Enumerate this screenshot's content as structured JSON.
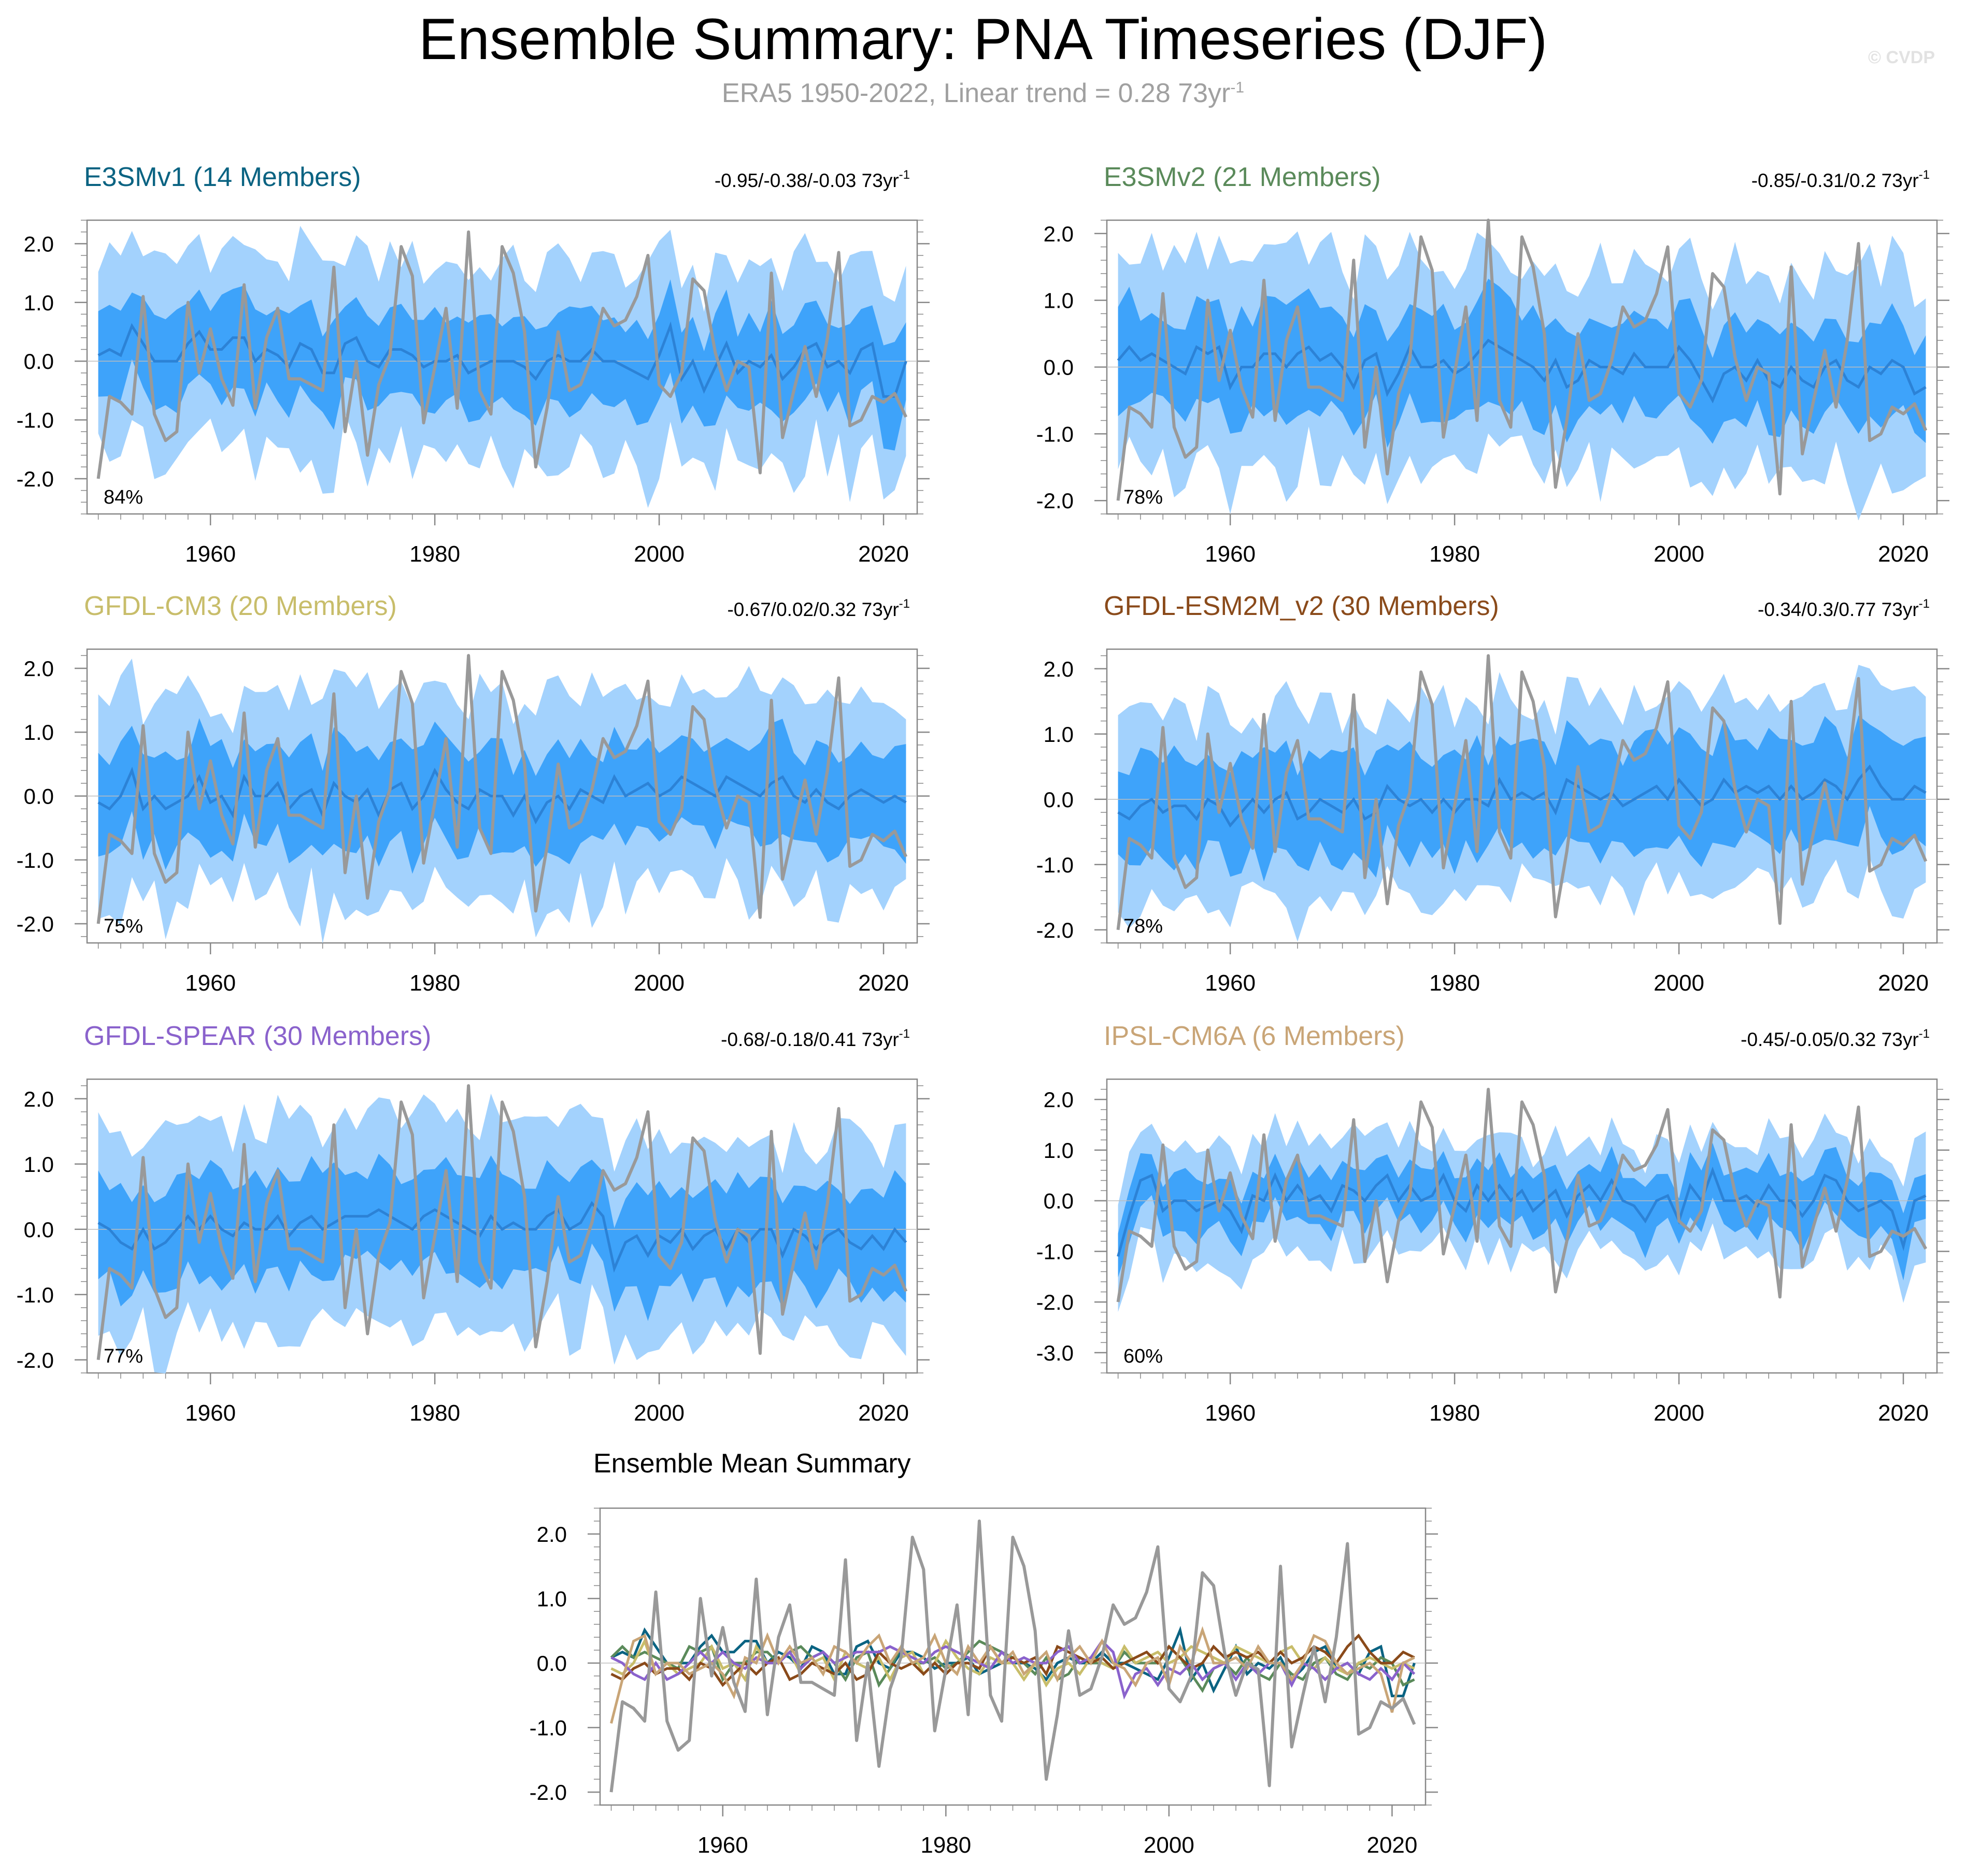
{
  "header": {
    "title": "Ensemble Summary: PNA Timeseries (DJF)",
    "subtitle": "ERA5 1950-2022, Linear trend = 0.28 73yr",
    "subtitle_exp": "-1",
    "watermark": "© CVDP"
  },
  "colors": {
    "outer_band": "#a3d2fd",
    "inner_band": "#3ea3fa",
    "ens_mean": "#2c82d6",
    "obs": "#999999",
    "axis": "#888888",
    "zero_line": "#bdbdbd"
  },
  "chart_data": {
    "type": "line",
    "x_start": 1950,
    "x_end": 2022,
    "xlim": [
      1949,
      2023
    ],
    "xticks": [
      1960,
      1980,
      2000,
      2020
    ],
    "observations": {
      "name": "ERA5",
      "x_start": 1950,
      "values": [
        -2.0,
        -0.6,
        -0.7,
        -0.9,
        1.1,
        -0.9,
        -1.35,
        -1.2,
        1.0,
        -0.2,
        0.55,
        -0.3,
        -0.75,
        1.3,
        -0.8,
        0.4,
        0.9,
        -0.3,
        -0.3,
        -0.4,
        -0.5,
        1.6,
        -1.2,
        0.0,
        -1.6,
        -0.4,
        0.1,
        1.95,
        1.45,
        -1.05,
        -0.1,
        0.9,
        -0.8,
        2.2,
        -0.5,
        -0.9,
        1.95,
        1.5,
        0.5,
        -1.8,
        -0.8,
        0.5,
        -0.5,
        -0.4,
        0.1,
        0.9,
        0.6,
        0.7,
        1.1,
        1.8,
        -0.4,
        -0.6,
        -0.2,
        1.4,
        1.2,
        0.15,
        -0.5,
        0.0,
        -0.1,
        -1.9,
        1.5,
        -1.3,
        -0.5,
        0.25,
        -0.6,
        0.4,
        1.85,
        -1.1,
        -1.0,
        -0.6,
        -0.7,
        -0.55,
        -0.95
      ]
    },
    "panels": [
      {
        "title": "E3SMv1 (14 Members)",
        "title_color": "#0a6382",
        "trend_text": "-0.95/-0.38/-0.03 73yr",
        "trend_exp": "-1",
        "pct": "84%",
        "ylim": [
          -2.6,
          2.4
        ],
        "yticks": [
          -2,
          -1,
          0,
          1,
          2
        ],
        "ytick_labels": [
          "-2.0",
          "-1.0",
          "0.0",
          "1.0",
          "2.0"
        ],
        "mean": [
          0.1,
          0.2,
          0.1,
          0.6,
          0.3,
          0.0,
          0.0,
          0.0,
          0.3,
          0.5,
          0.2,
          0.2,
          0.4,
          0.4,
          0.0,
          0.2,
          0.1,
          -0.1,
          0.3,
          0.2,
          -0.2,
          -0.2,
          0.3,
          0.4,
          0.0,
          -0.1,
          0.2,
          0.2,
          0.1,
          -0.1,
          0.0,
          0.0,
          0.1,
          -0.2,
          -0.1,
          0.0,
          0.0,
          0.0,
          -0.1,
          -0.3,
          0.0,
          0.1,
          0.0,
          0.0,
          0.2,
          0.0,
          0.0,
          -0.1,
          -0.2,
          -0.3,
          0.1,
          0.6,
          -0.3,
          0.0,
          -0.5,
          -0.1,
          0.3,
          -0.2,
          0.0,
          -0.1,
          0.1,
          -0.3,
          -0.1,
          0.2,
          0.3,
          -0.1,
          0.0,
          -0.2,
          0.2,
          0.3,
          -0.6,
          -0.6,
          0.0
        ],
        "hw_in": 0.75,
        "hw_out": 1.65
      },
      {
        "title": "E3SMv2 (21 Members)",
        "title_color": "#5a8a5a",
        "trend_text": "-0.85/-0.31/0.2 73yr",
        "trend_exp": "-1",
        "pct": "78%",
        "ylim": [
          -2.2,
          2.2
        ],
        "yticks": [
          -2,
          -1,
          0,
          1,
          2
        ],
        "ytick_labels": [
          "-2.0",
          "-1.0",
          "0.0",
          "1.0",
          "2.0"
        ],
        "mean": [
          0.1,
          0.3,
          0.1,
          0.2,
          0.1,
          0.0,
          -0.1,
          0.3,
          0.2,
          0.3,
          -0.3,
          0.0,
          0.0,
          0.2,
          0.2,
          0.0,
          0.2,
          0.3,
          0.1,
          0.2,
          0.0,
          -0.3,
          0.1,
          0.2,
          -0.4,
          -0.1,
          0.3,
          0.0,
          0.0,
          0.1,
          -0.1,
          0.0,
          0.2,
          0.4,
          0.3,
          0.2,
          0.1,
          0.0,
          -0.2,
          0.1,
          -0.3,
          -0.2,
          0.1,
          0.0,
          0.0,
          -0.1,
          0.2,
          0.0,
          0.0,
          0.0,
          0.3,
          0.1,
          -0.2,
          -0.5,
          -0.1,
          0.0,
          -0.2,
          0.1,
          -0.2,
          -0.3,
          0.0,
          -0.2,
          -0.3,
          0.0,
          0.1,
          -0.2,
          -0.3,
          0.0,
          -0.1,
          0.1,
          0.0,
          -0.4,
          -0.3
        ],
        "hw_in": 0.75,
        "hw_out": 1.55
      },
      {
        "title": "GFDL-CM3 (20 Members)",
        "title_color": "#c8bd6a",
        "trend_text": "-0.67/0.02/0.32 73yr",
        "trend_exp": "-1",
        "pct": "75%",
        "ylim": [
          -2.3,
          2.3
        ],
        "yticks": [
          -2,
          -1,
          0,
          1,
          2
        ],
        "ytick_labels": [
          "-2.0",
          "-1.0",
          "0.0",
          "1.0",
          "2.0"
        ],
        "mean": [
          -0.1,
          -0.2,
          0.0,
          0.4,
          -0.2,
          0.0,
          -0.2,
          -0.1,
          0.0,
          0.3,
          -0.1,
          0.0,
          -0.3,
          0.3,
          0.0,
          0.0,
          0.2,
          -0.2,
          0.0,
          0.1,
          -0.3,
          0.2,
          0.0,
          -0.1,
          0.1,
          -0.3,
          0.1,
          0.2,
          -0.2,
          0.0,
          0.4,
          0.1,
          -0.1,
          -0.2,
          0.1,
          0.0,
          0.0,
          -0.3,
          0.0,
          -0.4,
          -0.1,
          0.0,
          -0.2,
          0.1,
          0.0,
          -0.1,
          0.3,
          0.0,
          0.1,
          0.2,
          0.0,
          0.1,
          0.3,
          0.2,
          0.1,
          0.0,
          0.3,
          0.2,
          0.1,
          0.0,
          0.2,
          0.3,
          0.0,
          -0.1,
          0.1,
          -0.1,
          -0.2,
          0.0,
          0.1,
          0.0,
          -0.1,
          0.0,
          -0.1
        ],
        "hw_in": 0.75,
        "hw_out": 1.6
      },
      {
        "title": "GFDL-ESM2M_v2 (30 Members)",
        "title_color": "#8a4a1a",
        "trend_text": "-0.34/0.3/0.77 73yr",
        "trend_exp": "-1",
        "pct": "78%",
        "ylim": [
          -2.2,
          2.3
        ],
        "yticks": [
          -2,
          -1,
          0,
          1,
          2
        ],
        "ytick_labels": [
          "-2.0",
          "-1.0",
          "0.0",
          "1.0",
          "2.0"
        ],
        "mean": [
          -0.2,
          -0.3,
          -0.1,
          0.0,
          -0.2,
          -0.1,
          -0.1,
          -0.3,
          0.0,
          -0.1,
          -0.4,
          -0.2,
          0.0,
          -0.2,
          0.0,
          0.1,
          -0.3,
          -0.2,
          0.0,
          -0.1,
          -0.2,
          0.0,
          -0.3,
          -0.2,
          0.2,
          0.0,
          -0.1,
          0.0,
          -0.2,
          0.0,
          -0.2,
          0.0,
          0.0,
          -0.1,
          0.3,
          0.0,
          0.1,
          0.0,
          0.1,
          -0.2,
          0.3,
          0.2,
          0.1,
          0.0,
          0.1,
          -0.1,
          0.0,
          0.1,
          0.2,
          0.0,
          0.3,
          0.1,
          -0.1,
          0.0,
          0.3,
          0.1,
          0.2,
          0.1,
          0.2,
          0.0,
          0.2,
          0.0,
          0.1,
          0.3,
          0.2,
          0.0,
          0.3,
          0.5,
          0.2,
          0.0,
          0.0,
          0.2,
          0.1
        ],
        "hw_in": 0.8,
        "hw_out": 1.45
      },
      {
        "title": "GFDL-SPEAR (30 Members)",
        "title_color": "#8a62cc",
        "trend_text": "-0.68/-0.18/0.41 73yr",
        "trend_exp": "-1",
        "pct": "77%",
        "ylim": [
          -2.2,
          2.3
        ],
        "yticks": [
          -2,
          -1,
          0,
          1,
          2
        ],
        "ytick_labels": [
          "-2.0",
          "-1.0",
          "0.0",
          "1.0",
          "2.0"
        ],
        "mean": [
          0.1,
          0.0,
          -0.2,
          -0.3,
          0.0,
          -0.3,
          -0.2,
          0.0,
          0.2,
          0.0,
          0.2,
          0.0,
          -0.1,
          0.1,
          0.0,
          0.0,
          0.2,
          -0.1,
          0.1,
          0.2,
          0.0,
          0.1,
          0.2,
          0.2,
          0.2,
          0.3,
          0.2,
          0.1,
          0.0,
          0.2,
          0.3,
          0.2,
          0.1,
          0.0,
          -0.1,
          0.2,
          0.0,
          0.1,
          0.0,
          0.0,
          0.2,
          0.3,
          0.0,
          0.1,
          0.4,
          0.2,
          -0.6,
          -0.2,
          -0.1,
          -0.4,
          -0.1,
          -0.2,
          0.0,
          -0.3,
          -0.1,
          0.0,
          -0.3,
          0.0,
          -0.2,
          0.0,
          0.0,
          -0.4,
          0.0,
          -0.1,
          -0.3,
          -0.1,
          0.0,
          -0.2,
          -0.3,
          -0.1,
          -0.3,
          0.0,
          -0.2
        ],
        "hw_in": 0.75,
        "hw_out": 1.55
      },
      {
        "title": "IPSL-CM6A (6 Members)",
        "title_color": "#c9a577",
        "trend_text": "-0.45/-0.05/0.32 73yr",
        "trend_exp": "-1",
        "pct": "60%",
        "ylim": [
          -3.4,
          2.4
        ],
        "yticks": [
          -3,
          -2,
          -1,
          0,
          1,
          2
        ],
        "ytick_labels": [
          "-3.0",
          "-2.0",
          "-1.0",
          "0.0",
          "1.0",
          "2.0"
        ],
        "mean": [
          -1.1,
          -0.3,
          0.4,
          0.5,
          -0.2,
          0.0,
          0.0,
          -0.2,
          -0.1,
          0.0,
          -0.2,
          -0.6,
          0.1,
          0.0,
          0.5,
          0.0,
          0.3,
          0.0,
          0.1,
          -0.2,
          0.3,
          0.2,
          0.0,
          0.3,
          0.5,
          0.0,
          0.3,
          0.0,
          0.1,
          0.5,
          0.0,
          -0.2,
          0.3,
          0.0,
          0.3,
          0.0,
          0.2,
          -0.2,
          0.0,
          0.2,
          -0.3,
          0.1,
          0.3,
          0.0,
          0.4,
          0.0,
          -0.1,
          -0.4,
          0.0,
          0.1,
          -0.4,
          0.3,
          0.0,
          0.6,
          0.0,
          0.0,
          0.1,
          -0.1,
          0.3,
          0.0,
          0.0,
          -0.3,
          0.0,
          0.5,
          0.4,
          0.0,
          -0.2,
          -0.1,
          0.0,
          -0.2,
          -0.9,
          0.0,
          0.1
        ],
        "hw_in": 0.55,
        "hw_out": 1.1
      }
    ],
    "summary": {
      "title": "Ensemble Mean Summary",
      "ylim": [
        -2.2,
        2.4
      ],
      "yticks": [
        -2,
        -1,
        0,
        1,
        2
      ],
      "ytick_labels": [
        "-2.0",
        "-1.0",
        "0.0",
        "1.0",
        "2.0"
      ],
      "series_colors": [
        "#0a6382",
        "#5a8a5a",
        "#c8bd6a",
        "#8a4a1a",
        "#8a62cc",
        "#c9a577"
      ]
    }
  }
}
